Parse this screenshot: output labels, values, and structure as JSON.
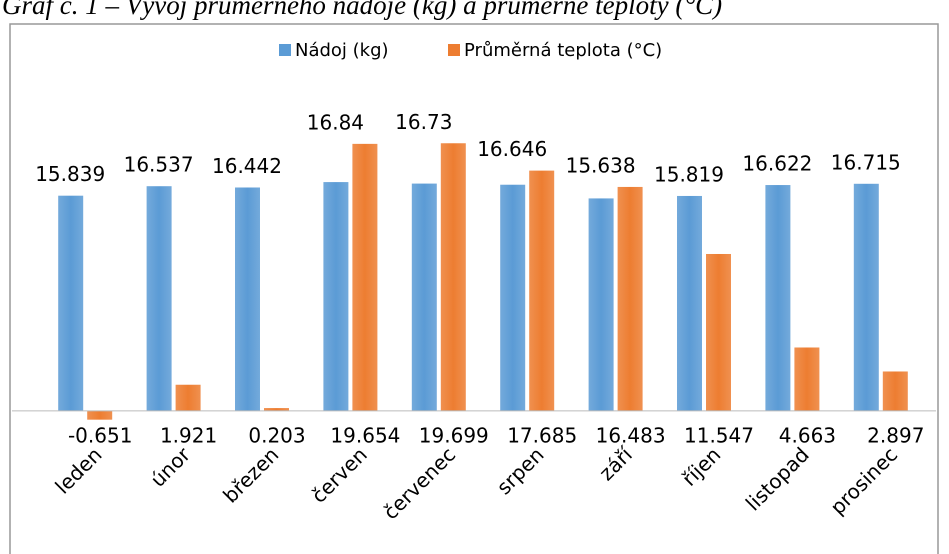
{
  "chart_data": {
    "type": "bar",
    "title": "Graf č. 1 – Vývoj průměrného nádoje (kg) a průměrné teploty (°C)",
    "categories": [
      "leden",
      "únor",
      "březen",
      "červen",
      "červenec",
      "srpen",
      "září",
      "říjen",
      "listopad",
      "prosinec"
    ],
    "series": [
      {
        "name": "Nádoj (kg)",
        "color": "#5b9bd5",
        "values": [
          15.839,
          16.537,
          16.442,
          16.84,
          16.73,
          16.646,
          15.638,
          15.819,
          16.622,
          16.715
        ]
      },
      {
        "name": "Průměrná teplota (°C)",
        "color": "#ed7d31",
        "values": [
          -0.651,
          1.921,
          0.203,
          19.654,
          19.699,
          17.685,
          16.483,
          11.547,
          4.663,
          2.897
        ]
      }
    ],
    "ylim": [
      -2,
      22
    ],
    "legend": "top"
  }
}
